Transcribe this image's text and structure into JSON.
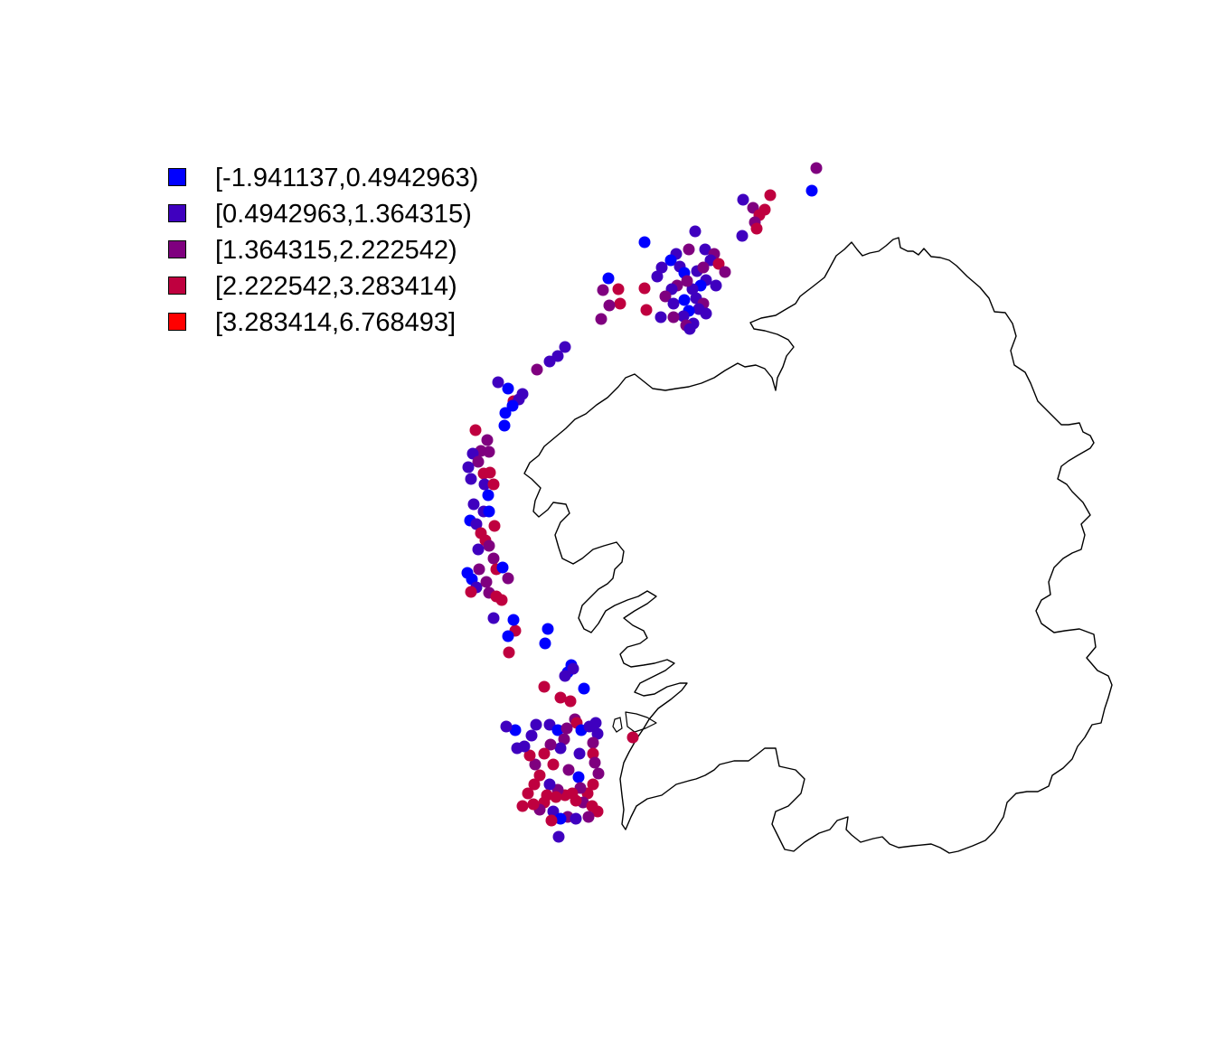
{
  "legend": {
    "items": [
      {
        "label": "[-1.941137,0.4942963)",
        "color": "#0000ff"
      },
      {
        "label": "[0.4942963,1.364315)",
        "color": "#3f00bf"
      },
      {
        "label": "[1.364315,2.222542)",
        "color": "#7f007f"
      },
      {
        "label": "[2.222542,3.283414)",
        "color": "#bf003f"
      },
      {
        "label": "[3.283414,6.768493]",
        "color": "#ff0000"
      }
    ]
  },
  "chart_data": {
    "type": "scatter",
    "title": "",
    "xlabel": "",
    "ylabel": "",
    "grid": false,
    "legend_position": "top-left",
    "classes": [
      "[-1.941137,0.4942963)",
      "[0.4942963,1.364315)",
      "[1.364315,2.222542)",
      "[2.222542,3.283414)",
      "[3.283414,6.768493]"
    ]
  }
}
